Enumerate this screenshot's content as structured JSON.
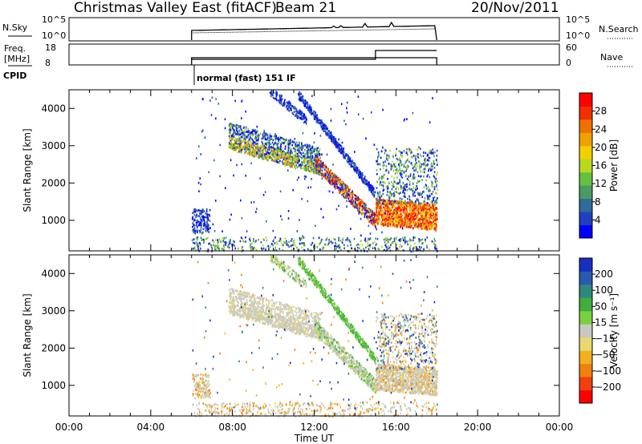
{
  "header": {
    "station": "Christmas Valley East (fitACF)",
    "beam": "Beam 21",
    "date": "20/Nov/2011"
  },
  "summary": {
    "nsky_label": "N.Sky",
    "nsky_ticks": [
      "10^5",
      "10^0"
    ],
    "nsearch_ticks": [
      "10^5",
      "10^0"
    ],
    "nsearch_label": "N.Search",
    "freq_label_1": "Freq.",
    "freq_label_2": "[MHz]",
    "freq_ticks": [
      "18",
      "8"
    ],
    "nave_ticks": [
      "60",
      "0"
    ],
    "nave_label": "Nave",
    "cpid_label": "CPID",
    "cpid_value": "normal (fast) 151 IF"
  },
  "chart_data": [
    {
      "type": "heatmap",
      "panel": "power",
      "xlabel": "Time UT",
      "ylabel": "Slant Range [km]",
      "xlim_hours": [
        0,
        24
      ],
      "x_ticks": [
        "00:00",
        "04:00",
        "08:00",
        "12:00",
        "16:00",
        "20:00",
        "00:00"
      ],
      "ylim": [
        180,
        4500
      ],
      "y_ticks": [
        1000,
        2000,
        3000,
        4000
      ],
      "colorbar": {
        "label": "Power [dB]",
        "ticks": [
          4,
          8,
          12,
          16,
          20,
          24,
          28
        ],
        "range": [
          0,
          32
        ],
        "colors": [
          "#0000ff",
          "#2040c0",
          "#2f6a9a",
          "#4a9a66",
          "#66c040",
          "#b8d820",
          "#f0d000",
          "#f0a000",
          "#f07000",
          "#f03000",
          "#ff0000"
        ]
      },
      "data_window_hours": [
        6,
        18
      ]
    },
    {
      "type": "heatmap",
      "panel": "velocity",
      "xlabel": "Time UT",
      "ylabel": "Slant Range [km]",
      "xlim_hours": [
        0,
        24
      ],
      "x_ticks": [
        "00:00",
        "04:00",
        "08:00",
        "12:00",
        "16:00",
        "20:00",
        "00:00"
      ],
      "ylim": [
        180,
        4500
      ],
      "y_ticks": [
        1000,
        2000,
        3000,
        4000
      ],
      "colorbar": {
        "label": "Velocity [m s⁻¹]",
        "ticks": [
          "200",
          "100",
          "50",
          "15",
          "−15",
          "−50",
          "−100",
          "−200"
        ],
        "colors": [
          "#1530c0",
          "#2a5ab0",
          "#2e8a7a",
          "#3fae3f",
          "#7ad040",
          "#c8c8c0",
          "#e8d870",
          "#f0b020",
          "#f08010",
          "#f04010",
          "#ff0000"
        ]
      },
      "data_window_hours": [
        6,
        18
      ]
    }
  ]
}
